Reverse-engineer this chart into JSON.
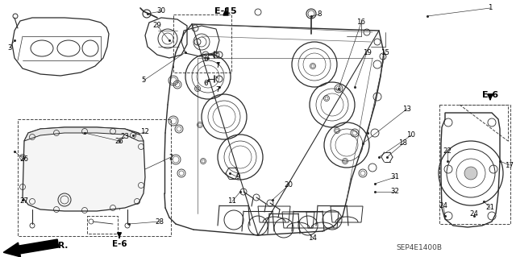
{
  "bg_color": "#ffffff",
  "line_color": "#2a2a2a",
  "text_color": "#000000",
  "diagram_code": "SEP4E1400B",
  "fig_w": 6.4,
  "fig_h": 3.19,
  "dpi": 100
}
